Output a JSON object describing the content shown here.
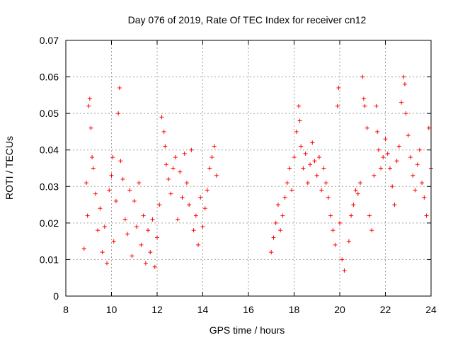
{
  "chart_data": {
    "type": "scatter",
    "title": "Day 076 of 2019, Rate Of TEC Index for receiver cn12",
    "xlabel": "GPS time / hours",
    "ylabel": "ROTI / TECUs",
    "xlim": [
      8,
      24
    ],
    "ylim": [
      0,
      0.07
    ],
    "xticks": [
      "8",
      "10",
      "12",
      "14",
      "16",
      "18",
      "20",
      "22",
      "24"
    ],
    "yticks": [
      "0",
      "0.01",
      "0.02",
      "0.03",
      "0.04",
      "0.05",
      "0.06",
      "0.07"
    ],
    "grid": true,
    "marker": "+",
    "color": "#ff0000",
    "series": [
      {
        "name": "cn12",
        "points": [
          [
            8.8,
            0.013
          ],
          [
            8.9,
            0.031
          ],
          [
            8.95,
            0.022
          ],
          [
            9.0,
            0.052
          ],
          [
            9.05,
            0.054
          ],
          [
            9.1,
            0.046
          ],
          [
            9.15,
            0.038
          ],
          [
            9.2,
            0.035
          ],
          [
            9.3,
            0.028
          ],
          [
            9.4,
            0.018
          ],
          [
            9.5,
            0.024
          ],
          [
            9.6,
            0.012
          ],
          [
            9.7,
            0.019
          ],
          [
            9.8,
            0.009
          ],
          [
            9.9,
            0.029
          ],
          [
            10.0,
            0.033
          ],
          [
            10.05,
            0.038
          ],
          [
            10.1,
            0.015
          ],
          [
            10.2,
            0.026
          ],
          [
            10.3,
            0.05
          ],
          [
            10.35,
            0.057
          ],
          [
            10.4,
            0.037
          ],
          [
            10.5,
            0.032
          ],
          [
            10.6,
            0.021
          ],
          [
            10.7,
            0.017
          ],
          [
            10.8,
            0.029
          ],
          [
            10.9,
            0.011
          ],
          [
            11.0,
            0.026
          ],
          [
            11.1,
            0.019
          ],
          [
            11.2,
            0.031
          ],
          [
            11.3,
            0.014
          ],
          [
            11.4,
            0.022
          ],
          [
            11.5,
            0.009
          ],
          [
            11.6,
            0.018
          ],
          [
            11.7,
            0.012
          ],
          [
            11.8,
            0.021
          ],
          [
            11.9,
            0.008
          ],
          [
            12.0,
            0.016
          ],
          [
            12.1,
            0.025
          ],
          [
            12.2,
            0.049
          ],
          [
            12.3,
            0.045
          ],
          [
            12.35,
            0.041
          ],
          [
            12.4,
            0.036
          ],
          [
            12.5,
            0.032
          ],
          [
            12.6,
            0.028
          ],
          [
            12.7,
            0.035
          ],
          [
            12.8,
            0.038
          ],
          [
            12.9,
            0.021
          ],
          [
            13.0,
            0.034
          ],
          [
            13.1,
            0.027
          ],
          [
            13.2,
            0.039
          ],
          [
            13.3,
            0.031
          ],
          [
            13.4,
            0.025
          ],
          [
            13.5,
            0.04
          ],
          [
            13.6,
            0.018
          ],
          [
            13.7,
            0.022
          ],
          [
            13.8,
            0.014
          ],
          [
            13.9,
            0.027
          ],
          [
            14.0,
            0.019
          ],
          [
            14.1,
            0.024
          ],
          [
            14.2,
            0.029
          ],
          [
            14.3,
            0.035
          ],
          [
            14.4,
            0.038
          ],
          [
            14.5,
            0.041
          ],
          [
            14.6,
            0.033
          ],
          [
            17.0,
            0.012
          ],
          [
            17.1,
            0.016
          ],
          [
            17.2,
            0.02
          ],
          [
            17.3,
            0.025
          ],
          [
            17.4,
            0.018
          ],
          [
            17.5,
            0.022
          ],
          [
            17.6,
            0.027
          ],
          [
            17.7,
            0.031
          ],
          [
            17.8,
            0.035
          ],
          [
            17.9,
            0.029
          ],
          [
            18.0,
            0.038
          ],
          [
            18.1,
            0.045
          ],
          [
            18.2,
            0.052
          ],
          [
            18.25,
            0.048
          ],
          [
            18.3,
            0.041
          ],
          [
            18.4,
            0.035
          ],
          [
            18.5,
            0.039
          ],
          [
            18.6,
            0.031
          ],
          [
            18.7,
            0.036
          ],
          [
            18.8,
            0.042
          ],
          [
            18.9,
            0.037
          ],
          [
            19.0,
            0.033
          ],
          [
            19.1,
            0.038
          ],
          [
            19.2,
            0.029
          ],
          [
            19.3,
            0.035
          ],
          [
            19.4,
            0.031
          ],
          [
            19.5,
            0.027
          ],
          [
            19.6,
            0.022
          ],
          [
            19.7,
            0.018
          ],
          [
            19.8,
            0.014
          ],
          [
            19.9,
            0.052
          ],
          [
            19.95,
            0.057
          ],
          [
            20.0,
            0.02
          ],
          [
            20.1,
            0.01
          ],
          [
            20.2,
            0.007
          ],
          [
            20.4,
            0.015
          ],
          [
            20.5,
            0.022
          ],
          [
            20.6,
            0.025
          ],
          [
            20.7,
            0.029
          ],
          [
            20.8,
            0.028
          ],
          [
            20.9,
            0.031
          ],
          [
            21.0,
            0.06
          ],
          [
            21.05,
            0.054
          ],
          [
            21.1,
            0.052
          ],
          [
            21.2,
            0.046
          ],
          [
            21.3,
            0.022
          ],
          [
            21.4,
            0.018
          ],
          [
            21.5,
            0.033
          ],
          [
            21.6,
            0.052
          ],
          [
            21.65,
            0.045
          ],
          [
            21.7,
            0.04
          ],
          [
            21.8,
            0.035
          ],
          [
            21.9,
            0.038
          ],
          [
            22.0,
            0.043
          ],
          [
            22.1,
            0.039
          ],
          [
            22.2,
            0.035
          ],
          [
            22.3,
            0.03
          ],
          [
            22.4,
            0.025
          ],
          [
            22.5,
            0.037
          ],
          [
            22.6,
            0.041
          ],
          [
            22.7,
            0.053
          ],
          [
            22.8,
            0.06
          ],
          [
            22.85,
            0.058
          ],
          [
            22.9,
            0.05
          ],
          [
            23.0,
            0.044
          ],
          [
            23.1,
            0.038
          ],
          [
            23.2,
            0.033
          ],
          [
            23.3,
            0.029
          ],
          [
            23.4,
            0.036
          ],
          [
            23.5,
            0.04
          ],
          [
            23.6,
            0.031
          ],
          [
            23.7,
            0.027
          ],
          [
            23.8,
            0.022
          ],
          [
            23.9,
            0.046
          ],
          [
            24.0,
            0.035
          ]
        ]
      }
    ]
  }
}
